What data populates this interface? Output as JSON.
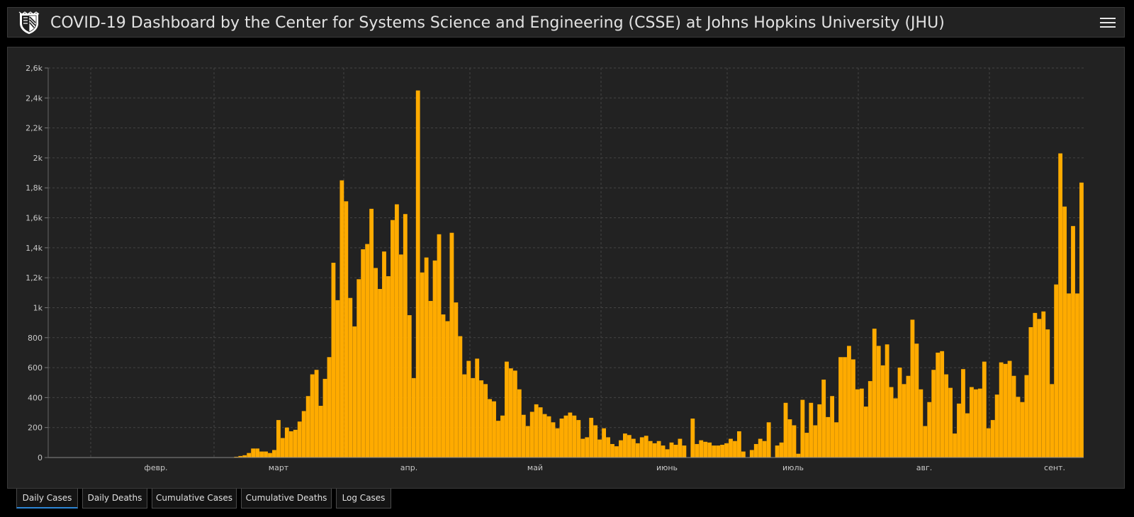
{
  "header": {
    "title": "COVID-19 Dashboard by the Center for Systems Science and Engineering (CSSE) at Johns Hopkins University (JHU)",
    "logo_icon": "jhu-shield-icon",
    "menu_icon": "hamburger-menu-icon"
  },
  "tabs": [
    {
      "label": "Daily Cases",
      "active": true
    },
    {
      "label": "Daily Deaths",
      "active": false
    },
    {
      "label": "Cumulative Cases",
      "active": false
    },
    {
      "label": "Cumulative Deaths",
      "active": false
    },
    {
      "label": "Log Cases",
      "active": false
    }
  ],
  "colors": {
    "bar": "#ffab00",
    "background": "#222222",
    "page": "#000000",
    "active_tab_underline": "#2d86d6"
  },
  "chart_data": {
    "type": "bar",
    "title": "",
    "xlabel": "",
    "ylabel": "",
    "ylim": [
      0,
      2600
    ],
    "yticks": [
      0,
      200,
      400,
      600,
      800,
      1000,
      1200,
      1400,
      1600,
      1800,
      2000,
      2200,
      2400,
      2600
    ],
    "ytick_labels": [
      "0",
      "200",
      "400",
      "600",
      "800",
      "1k",
      "1,2k",
      "1,4k",
      "1,6k",
      "1,8k",
      "2k",
      "2,2k",
      "2,4k",
      "2,6k"
    ],
    "month_labels": [
      "февр.",
      "март",
      "апр.",
      "май",
      "июнь",
      "июль",
      "авг.",
      "сент."
    ],
    "grid": true,
    "series": [
      {
        "values": [
          0,
          0,
          0,
          0,
          0,
          0,
          0,
          0,
          0,
          0,
          0,
          0,
          0,
          0,
          0,
          0,
          0,
          0,
          0,
          0,
          0,
          0,
          0,
          0,
          0,
          0,
          0,
          0,
          0,
          0,
          0,
          0,
          0,
          0,
          0,
          0,
          0,
          0,
          0,
          0,
          0,
          0,
          0,
          0,
          5,
          10,
          15,
          30,
          60,
          60,
          40,
          40,
          30,
          50,
          250,
          130,
          200,
          175,
          185,
          240,
          310,
          410,
          555,
          585,
          345,
          525,
          670,
          1300,
          1050,
          1850,
          1710,
          1065,
          875,
          1190,
          1390,
          1425,
          1660,
          1265,
          1125,
          1375,
          1210,
          1585,
          1690,
          1355,
          1625,
          950,
          530,
          2450,
          1235,
          1335,
          1045,
          1315,
          1490,
          955,
          910,
          1500,
          1035,
          810,
          555,
          645,
          530,
          660,
          515,
          490,
          390,
          375,
          245,
          280,
          640,
          595,
          580,
          455,
          285,
          210,
          305,
          355,
          335,
          290,
          275,
          235,
          195,
          260,
          280,
          300,
          280,
          250,
          125,
          135,
          265,
          215,
          120,
          195,
          135,
          90,
          75,
          115,
          160,
          150,
          125,
          95,
          135,
          145,
          110,
          95,
          110,
          80,
          55,
          100,
          85,
          125,
          80,
          0,
          260,
          90,
          115,
          105,
          100,
          80,
          80,
          85,
          95,
          125,
          110,
          175,
          40,
          0,
          50,
          90,
          125,
          110,
          235,
          0,
          80,
          100,
          365,
          255,
          215,
          25,
          385,
          165,
          365,
          215,
          355,
          520,
          270,
          410,
          235,
          670,
          670,
          745,
          655,
          455,
          460,
          340,
          510,
          860,
          745,
          615,
          755,
          470,
          395,
          600,
          490,
          545,
          920,
          760,
          455,
          210,
          370,
          585,
          700,
          710,
          555,
          465,
          160,
          360,
          590,
          295,
          470,
          455,
          460,
          640,
          195,
          250,
          420,
          635,
          625,
          645,
          545,
          405,
          370,
          550,
          870,
          965,
          925,
          975,
          855,
          490,
          1155,
          2030,
          1675,
          1095,
          1545,
          1095,
          1835
        ]
      }
    ]
  }
}
